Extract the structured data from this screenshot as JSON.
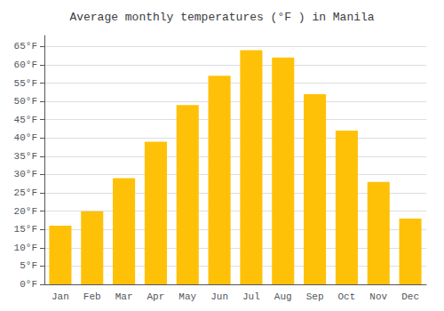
{
  "chart_data": {
    "type": "bar",
    "title": "Average monthly temperatures (°F ) in Manila",
    "categories": [
      "Jan",
      "Feb",
      "Mar",
      "Apr",
      "May",
      "Jun",
      "Jul",
      "Aug",
      "Sep",
      "Oct",
      "Nov",
      "Dec"
    ],
    "values": [
      16,
      20,
      29,
      39,
      49,
      57,
      64,
      62,
      52,
      42,
      28,
      18
    ],
    "color": "#FFC107",
    "ylim": [
      0,
      68
    ],
    "yticks": [
      {
        "value": 0,
        "label": "0°F"
      },
      {
        "value": 5,
        "label": "5°F"
      },
      {
        "value": 10,
        "label": "10°F"
      },
      {
        "value": 15,
        "label": "15°F"
      },
      {
        "value": 20,
        "label": "20°F"
      },
      {
        "value": 25,
        "label": "25°F"
      },
      {
        "value": 30,
        "label": "30°F"
      },
      {
        "value": 35,
        "label": "35°F"
      },
      {
        "value": 40,
        "label": "40°F"
      },
      {
        "value": 45,
        "label": "45°F"
      },
      {
        "value": 50,
        "label": "50°F"
      },
      {
        "value": 55,
        "label": "55°F"
      },
      {
        "value": 60,
        "label": "60°F"
      },
      {
        "value": 65,
        "label": "65°F"
      }
    ],
    "grid": true
  }
}
